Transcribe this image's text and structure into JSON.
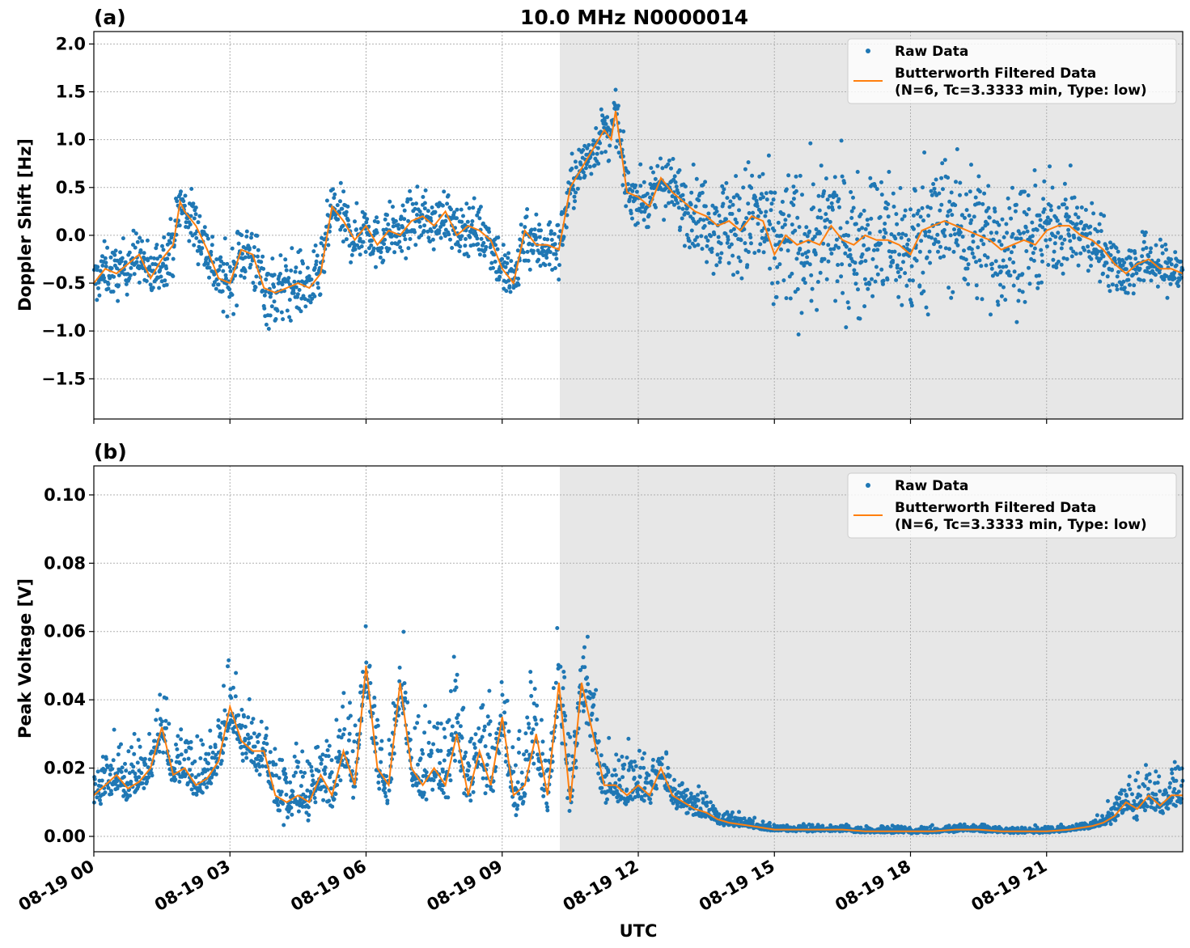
{
  "figure_title": "10.0 MHz N0000014",
  "x_axis_label": "UTC",
  "x_tick_labels": [
    "08-19 00",
    "08-19 03",
    "08-19 06",
    "08-19 09",
    "08-19 12",
    "08-19 15",
    "08-19 18",
    "08-19 21"
  ],
  "legend": {
    "raw": "Raw Data",
    "filtered_line1": "Butterworth Filtered Data",
    "filtered_line2": "(N=6, Tc=3.3333 min, Type: low)"
  },
  "colors": {
    "raw": "#1f77b4",
    "filtered": "#ff7f0e",
    "shade": "#e7e7e7",
    "grid": "#b0b0b0"
  },
  "chart_data": [
    {
      "type": "scatter",
      "panel_label": "(a)",
      "ylabel": "Doppler Shift [Hz]",
      "xlim_hours": [
        0,
        24
      ],
      "ylim": [
        -1.92,
        2.13
      ],
      "yticks": [
        -1.5,
        -1.0,
        -0.5,
        0.0,
        0.5,
        1.0,
        1.5,
        2.0
      ],
      "ytick_labels": [
        "−1.5",
        "−1.0",
        "−0.5",
        "0.0",
        "0.5",
        "1.0",
        "1.5",
        "2.0"
      ],
      "shaded_region_hours": [
        10.25,
        24
      ],
      "grid": true,
      "legend_position": "top-right",
      "series": [
        {
          "name": "Butterworth Filtered Data",
          "style": "line",
          "x_hours": [
            0,
            0.25,
            0.5,
            0.75,
            1,
            1.25,
            1.5,
            1.75,
            1.9,
            2,
            2.25,
            2.5,
            2.75,
            3,
            3.25,
            3.5,
            3.75,
            4,
            4.25,
            4.5,
            4.75,
            5,
            5.25,
            5.5,
            5.75,
            6,
            6.25,
            6.5,
            6.75,
            7,
            7.25,
            7.5,
            7.75,
            8,
            8.25,
            8.5,
            8.75,
            9,
            9.25,
            9.5,
            9.75,
            10,
            10.25,
            10.5,
            10.75,
            11,
            11.25,
            11.4,
            11.5,
            11.75,
            12,
            12.25,
            12.5,
            12.75,
            13,
            13.25,
            13.5,
            13.75,
            14,
            14.25,
            14.5,
            14.75,
            15,
            15.25,
            15.5,
            15.75,
            16,
            16.25,
            16.5,
            16.75,
            17,
            17.25,
            17.5,
            17.75,
            18,
            18.25,
            18.5,
            18.75,
            19,
            19.25,
            19.5,
            19.75,
            20,
            20.25,
            20.5,
            20.75,
            21,
            21.25,
            21.5,
            21.75,
            22,
            22.25,
            22.5,
            22.75,
            23,
            23.25,
            23.5,
            23.75,
            24
          ],
          "y": [
            -0.5,
            -0.35,
            -0.4,
            -0.3,
            -0.2,
            -0.45,
            -0.25,
            -0.1,
            0.35,
            0.25,
            0.1,
            -0.15,
            -0.45,
            -0.5,
            -0.15,
            -0.2,
            -0.55,
            -0.6,
            -0.55,
            -0.5,
            -0.55,
            -0.4,
            0.3,
            0.15,
            -0.05,
            0.1,
            -0.1,
            0.05,
            0.0,
            0.15,
            0.2,
            0.1,
            0.25,
            0.0,
            0.1,
            0.05,
            -0.05,
            -0.35,
            -0.5,
            0.05,
            -0.1,
            -0.1,
            -0.15,
            0.5,
            0.7,
            0.9,
            1.1,
            1.0,
            1.3,
            0.45,
            0.4,
            0.3,
            0.6,
            0.45,
            0.35,
            0.25,
            0.2,
            0.1,
            0.15,
            0.05,
            0.2,
            0.15,
            -0.2,
            0.0,
            -0.1,
            -0.05,
            -0.1,
            0.1,
            -0.05,
            -0.1,
            0.0,
            -0.05,
            -0.05,
            -0.1,
            -0.2,
            0.05,
            0.1,
            0.15,
            0.1,
            0.05,
            0.0,
            -0.05,
            -0.15,
            -0.1,
            -0.05,
            -0.1,
            0.05,
            0.1,
            0.1,
            0.0,
            -0.05,
            -0.15,
            -0.3,
            -0.4,
            -0.3,
            -0.25,
            -0.35,
            -0.35,
            -0.4
          ]
        },
        {
          "name": "Raw Data",
          "style": "markers",
          "spread_x_hours": [
            0,
            2,
            4,
            5,
            8,
            9.5,
            10.25,
            11,
            12,
            13.5,
            15,
            18,
            20,
            22.5,
            24
          ],
          "spread_hz": [
            0.3,
            0.35,
            0.45,
            0.35,
            0.3,
            0.4,
            0.35,
            0.3,
            0.3,
            0.5,
            0.85,
            0.85,
            0.8,
            0.35,
            0.3
          ]
        }
      ]
    },
    {
      "type": "scatter",
      "panel_label": "(b)",
      "ylabel": "Peak Voltage [V]",
      "xlim_hours": [
        0,
        24
      ],
      "ylim": [
        -0.0045,
        0.1085
      ],
      "yticks": [
        0.0,
        0.02,
        0.04,
        0.06,
        0.08,
        0.1
      ],
      "ytick_labels": [
        "0.00",
        "0.02",
        "0.04",
        "0.06",
        "0.08",
        "0.10"
      ],
      "shaded_region_hours": [
        10.25,
        24
      ],
      "grid": true,
      "legend_position": "top-right",
      "series": [
        {
          "name": "Butterworth Filtered Data",
          "style": "line",
          "x_hours": [
            0,
            0.25,
            0.5,
            0.75,
            1,
            1.25,
            1.5,
            1.75,
            2,
            2.25,
            2.5,
            2.75,
            3,
            3.25,
            3.5,
            3.75,
            4,
            4.25,
            4.5,
            4.75,
            5,
            5.25,
            5.5,
            5.75,
            6,
            6.25,
            6.5,
            6.75,
            7,
            7.25,
            7.5,
            7.75,
            8,
            8.25,
            8.5,
            8.75,
            9,
            9.25,
            9.5,
            9.75,
            10,
            10.25,
            10.5,
            10.75,
            11,
            11.25,
            11.5,
            11.75,
            12,
            12.25,
            12.5,
            12.75,
            13,
            13.25,
            13.5,
            13.75,
            14,
            14.5,
            15,
            15.5,
            16,
            16.5,
            17,
            17.5,
            18,
            18.5,
            19,
            19.5,
            20,
            20.5,
            21,
            21.5,
            22,
            22.25,
            22.5,
            22.75,
            23,
            23.25,
            23.5,
            23.75,
            24
          ],
          "y": [
            0.012,
            0.015,
            0.018,
            0.014,
            0.016,
            0.02,
            0.032,
            0.018,
            0.02,
            0.015,
            0.017,
            0.022,
            0.038,
            0.028,
            0.025,
            0.025,
            0.012,
            0.01,
            0.012,
            0.01,
            0.018,
            0.012,
            0.025,
            0.015,
            0.05,
            0.02,
            0.015,
            0.045,
            0.02,
            0.015,
            0.02,
            0.015,
            0.03,
            0.012,
            0.025,
            0.015,
            0.035,
            0.012,
            0.015,
            0.03,
            0.012,
            0.045,
            0.01,
            0.045,
            0.03,
            0.015,
            0.015,
            0.012,
            0.015,
            0.012,
            0.02,
            0.012,
            0.01,
            0.008,
            0.007,
            0.005,
            0.004,
            0.003,
            0.002,
            0.002,
            0.002,
            0.002,
            0.0015,
            0.0015,
            0.0015,
            0.0015,
            0.002,
            0.002,
            0.0015,
            0.0015,
            0.0015,
            0.002,
            0.003,
            0.004,
            0.006,
            0.01,
            0.008,
            0.012,
            0.009,
            0.012,
            0.012
          ]
        },
        {
          "name": "Raw Data",
          "style": "markers",
          "spread_x_hours": [
            0,
            3,
            6,
            9,
            10.5,
            12,
            13,
            14,
            15,
            22,
            22.5,
            24
          ],
          "spread_volts": [
            0.007,
            0.01,
            0.012,
            0.013,
            0.015,
            0.008,
            0.005,
            0.002,
            0.001,
            0.001,
            0.005,
            0.006
          ]
        }
      ]
    }
  ]
}
